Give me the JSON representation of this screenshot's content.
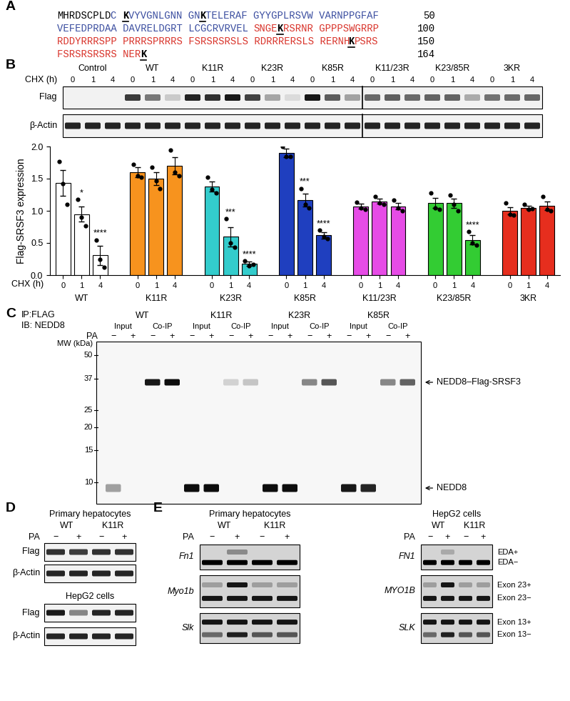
{
  "panel_labels": [
    "A",
    "B",
    "C",
    "D",
    "E"
  ],
  "sequence": {
    "lines": [
      {
        "segments": [
          {
            "text": "MHRDSCPLD",
            "color": "#000000",
            "bold": false
          },
          {
            "text": "C ",
            "color": "#3b4ea0",
            "bold": false
          },
          {
            "text": "K",
            "color": "#000000",
            "bold": true
          },
          {
            "text": "VYVGNLGNN GN",
            "color": "#3b4ea0",
            "bold": false
          },
          {
            "text": "K",
            "color": "#000000",
            "bold": true
          },
          {
            "text": "TELERAF GYYGPLRSVW VARNPPGFAF",
            "color": "#3b4ea0",
            "bold": false
          }
        ],
        "end": 50
      },
      {
        "segments": [
          {
            "text": "VEFEDPRDAA DAVRELDGRT LCGCRVRVEL ",
            "color": "#3b4ea0",
            "bold": false
          },
          {
            "text": "SNGE",
            "color": "#d9342b",
            "bold": false
          },
          {
            "text": "K",
            "color": "#000000",
            "bold": true
          },
          {
            "text": "RSRNR GPPPSWGRRP",
            "color": "#d9342b",
            "bold": false
          }
        ],
        "end": 100
      },
      {
        "segments": [
          {
            "text": "RDDYRRRSPP PRRRSPRRRS FSRSRSRSLS RDRRRERSLS RERNH",
            "color": "#d9342b",
            "bold": false
          },
          {
            "text": "K",
            "color": "#000000",
            "bold": true
          },
          {
            "text": "PSRS",
            "color": "#d9342b",
            "bold": false
          }
        ],
        "end": 150
      },
      {
        "segments": [
          {
            "text": "FSRSRSRSRS NER",
            "color": "#d9342b",
            "bold": false
          },
          {
            "text": "K",
            "color": "#000000",
            "bold": true
          }
        ],
        "end": 164
      }
    ]
  },
  "blot_B": {
    "groups": [
      "Control",
      "WT",
      "K11R",
      "K23R",
      "K85R",
      "K11/23R",
      "K23/85R",
      "3KR"
    ],
    "row_label": "CHX (h)",
    "times": [
      0,
      1,
      4
    ],
    "rows": [
      "Flag",
      "β-Actin"
    ]
  },
  "chart_data": {
    "type": "bar",
    "categories": [
      "0",
      "1",
      "4"
    ],
    "xlabel": "CHX (h)",
    "ylabel": "Flag-SRSF3 expression",
    "ylim": [
      0.0,
      2.0
    ],
    "yticks": [
      0.0,
      0.5,
      1.0,
      1.5,
      2.0
    ],
    "grid": false,
    "series": [
      {
        "name": "WT",
        "color": "#ffffff",
        "values": [
          1.43,
          0.95,
          0.31
        ],
        "errors": [
          0.2,
          0.12,
          0.15
        ],
        "points": [
          [
            1.77,
            1.42,
            1.1
          ],
          [
            1.18,
            0.9,
            0.77
          ],
          [
            0.55,
            0.25,
            0.12
          ]
        ],
        "significance": [
          null,
          "*",
          "****"
        ]
      },
      {
        "name": "K11R",
        "color": "#f7931e",
        "values": [
          1.6,
          1.5,
          1.7
        ],
        "errors": [
          0.08,
          0.1,
          0.13
        ],
        "points": [
          [
            1.72,
            1.55,
            1.52
          ],
          [
            1.68,
            1.47,
            1.35
          ],
          [
            1.95,
            1.6,
            1.55
          ]
        ],
        "significance": [
          null,
          null,
          null
        ]
      },
      {
        "name": "K23R",
        "color": "#33cccc",
        "values": [
          1.38,
          0.6,
          0.18
        ],
        "errors": [
          0.08,
          0.15,
          0.03
        ],
        "points": [
          [
            1.52,
            1.33,
            1.28
          ],
          [
            0.88,
            0.5,
            0.43
          ],
          [
            0.22,
            0.15,
            0.17
          ]
        ],
        "significance": [
          null,
          "***",
          "****"
        ]
      },
      {
        "name": "K85R",
        "color": "#1f3fbf",
        "values": [
          1.9,
          1.17,
          0.62
        ],
        "errors": [
          0.07,
          0.1,
          0.05
        ],
        "points": [
          [
            2.0,
            1.85,
            1.85
          ],
          [
            1.35,
            1.1,
            1.05
          ],
          [
            0.7,
            0.6,
            0.57
          ]
        ],
        "significance": [
          null,
          "***",
          "****"
        ]
      },
      {
        "name": "K11/23R",
        "color": "#e64ce6",
        "values": [
          1.07,
          1.15,
          1.07
        ],
        "errors": [
          0.04,
          0.04,
          0.05
        ],
        "points": [
          [
            1.13,
            1.05,
            1.02
          ],
          [
            1.22,
            1.12,
            1.1
          ],
          [
            1.17,
            1.05,
            1.0
          ]
        ],
        "significance": [
          null,
          null,
          null
        ]
      },
      {
        "name": "K23/85R",
        "color": "#33cc33",
        "values": [
          1.12,
          1.12,
          0.55
        ],
        "errors": [
          0.08,
          0.07,
          0.07
        ],
        "points": [
          [
            1.28,
            1.05,
            1.02
          ],
          [
            1.25,
            1.1,
            1.0
          ],
          [
            0.68,
            0.5,
            0.47
          ]
        ],
        "significance": [
          null,
          null,
          "****"
        ]
      },
      {
        "name": "3KR",
        "color": "#e62e1e",
        "values": [
          1.0,
          1.05,
          1.08
        ],
        "errors": [
          0.06,
          0.03,
          0.07
        ],
        "points": [
          [
            1.12,
            0.95,
            0.93
          ],
          [
            1.1,
            1.02,
            1.03
          ],
          [
            1.22,
            1.02,
            1.0
          ]
        ],
        "significance": [
          null,
          null,
          null
        ]
      }
    ]
  },
  "blot_C": {
    "header": [
      "IP:FLAG",
      "IB: NEDD8"
    ],
    "groups": [
      "WT",
      "K11R",
      "K23R",
      "K85R"
    ],
    "fractions": [
      "Input",
      "Co-IP"
    ],
    "treatment": "PA",
    "treatment_states": [
      "−",
      "+"
    ],
    "mw_label": "MW (kDa)",
    "mw_markers": [
      50,
      37,
      25,
      20,
      15,
      10
    ],
    "bands": [
      "NEDD8–Flag-SRSF3",
      "NEDD8"
    ]
  },
  "blot_D": {
    "groups": [
      "WT",
      "K11R"
    ],
    "treatment": "PA",
    "treatment_states": [
      "−",
      "+"
    ],
    "sections": [
      {
        "title": "Primary hepatocytes",
        "rows": [
          "Flag",
          "β-Actin"
        ]
      },
      {
        "title": "HepG2 cells",
        "rows": [
          "Flag",
          "β-Actin"
        ]
      }
    ]
  },
  "gels_E": {
    "groups": [
      "WT",
      "K11R"
    ],
    "treatment": "PA",
    "treatment_states": [
      "−",
      "+"
    ],
    "sections": [
      {
        "title": "Primary hepatocytes",
        "genes": [
          "Fn1",
          "Myo1b",
          "Slk"
        ]
      },
      {
        "title": "HepG2 cells",
        "genes": [
          "FN1",
          "MYO1B",
          "SLK"
        ],
        "isoforms": [
          [
            "EDA+",
            "EDA−"
          ],
          [
            "Exon 23+",
            "Exon 23−"
          ],
          [
            "Exon 13+",
            "Exon 13−"
          ]
        ]
      }
    ]
  }
}
